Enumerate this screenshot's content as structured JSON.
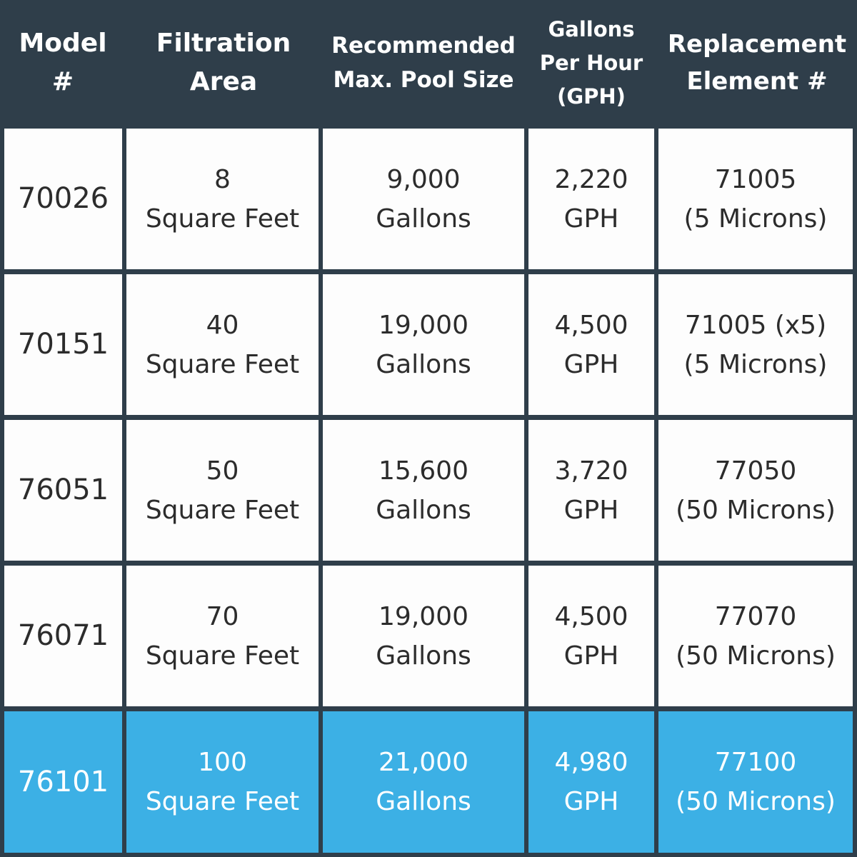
{
  "colors": {
    "header_bg": "#2f3e4a",
    "cell_bg": "#fdfdfd",
    "highlight_bg": "#3cb0e5",
    "text_dark": "#2c2c2c",
    "text_light": "#ffffff"
  },
  "headers": [
    {
      "line1": "Model",
      "line2": "#",
      "line3": ""
    },
    {
      "line1": "Filtration",
      "line2": "Area",
      "line3": ""
    },
    {
      "line1": "Recommended",
      "line2": "Max. Pool Size",
      "line3": ""
    },
    {
      "line1": "Gallons",
      "line2": "Per Hour",
      "line3": "(GPH)"
    },
    {
      "line1": "Replacement",
      "line2": "Element #",
      "line3": ""
    }
  ],
  "rows": [
    {
      "model": "70026",
      "area_value": "8",
      "area_unit": "Square Feet",
      "pool_value": "9,000",
      "pool_unit": "Gallons",
      "gph_value": "2,220",
      "gph_unit": "GPH",
      "element_value": "71005",
      "element_note": "(5 Microns)",
      "highlight": false
    },
    {
      "model": "70151",
      "area_value": "40",
      "area_unit": "Square Feet",
      "pool_value": "19,000",
      "pool_unit": "Gallons",
      "gph_value": "4,500",
      "gph_unit": "GPH",
      "element_value": "71005 (x5)",
      "element_note": "(5 Microns)",
      "highlight": false
    },
    {
      "model": "76051",
      "area_value": "50",
      "area_unit": "Square Feet",
      "pool_value": "15,600",
      "pool_unit": "Gallons",
      "gph_value": "3,720",
      "gph_unit": "GPH",
      "element_value": "77050",
      "element_note": "(50 Microns)",
      "highlight": false
    },
    {
      "model": "76071",
      "area_value": "70",
      "area_unit": "Square Feet",
      "pool_value": "19,000",
      "pool_unit": "Gallons",
      "gph_value": "4,500",
      "gph_unit": "GPH",
      "element_value": "77070",
      "element_note": "(50 Microns)",
      "highlight": false
    },
    {
      "model": "76101",
      "area_value": "100",
      "area_unit": "Square Feet",
      "pool_value": "21,000",
      "pool_unit": "Gallons",
      "gph_value": "4,980",
      "gph_unit": "GPH",
      "element_value": "77100",
      "element_note": "(50 Microns)",
      "highlight": true
    }
  ]
}
